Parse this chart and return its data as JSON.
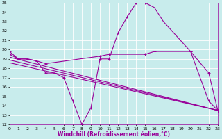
{
  "background_color": "#c8ecec",
  "plot_bg_color": "#c8ecec",
  "line_color": "#990099",
  "grid_color": "#ffffff",
  "xlabel": "Windchill (Refroidissement éolien,°C)",
  "xlabel_fontsize": 5.5,
  "tick_fontsize": 4.5,
  "ylim": [
    12,
    25
  ],
  "xlim": [
    0,
    23
  ],
  "yticks": [
    12,
    13,
    14,
    15,
    16,
    17,
    18,
    19,
    20,
    21,
    22,
    23,
    24,
    25
  ],
  "xticks": [
    0,
    1,
    2,
    3,
    4,
    5,
    6,
    7,
    8,
    9,
    10,
    11,
    12,
    13,
    14,
    15,
    16,
    17,
    18,
    19,
    20,
    21,
    22,
    23
  ],
  "lines": [
    {
      "x": [
        0,
        1,
        2,
        3,
        4,
        5,
        6,
        7,
        8,
        9,
        10,
        11,
        12,
        13,
        14,
        15,
        16,
        17,
        20,
        22,
        23
      ],
      "y": [
        19.8,
        19.0,
        19.0,
        18.8,
        17.5,
        17.5,
        17.0,
        14.5,
        12.0,
        13.8,
        19.0,
        19.0,
        21.8,
        23.5,
        25.0,
        25.0,
        24.5,
        23.0,
        19.8,
        14.5,
        13.5
      ]
    },
    {
      "x": [
        0,
        1,
        2,
        3,
        4,
        10,
        11,
        15,
        16,
        20,
        22,
        23
      ],
      "y": [
        19.5,
        19.0,
        19.0,
        18.8,
        18.5,
        19.3,
        19.5,
        19.5,
        19.8,
        19.8,
        17.5,
        13.5
      ]
    },
    {
      "x": [
        0,
        23
      ],
      "y": [
        19.2,
        13.5
      ]
    },
    {
      "x": [
        0,
        23
      ],
      "y": [
        18.9,
        13.5
      ]
    },
    {
      "x": [
        0,
        23
      ],
      "y": [
        18.6,
        13.5
      ]
    }
  ],
  "marker": "+",
  "marker_size": 3,
  "markeredgewidth": 0.7,
  "linewidth": 0.8
}
